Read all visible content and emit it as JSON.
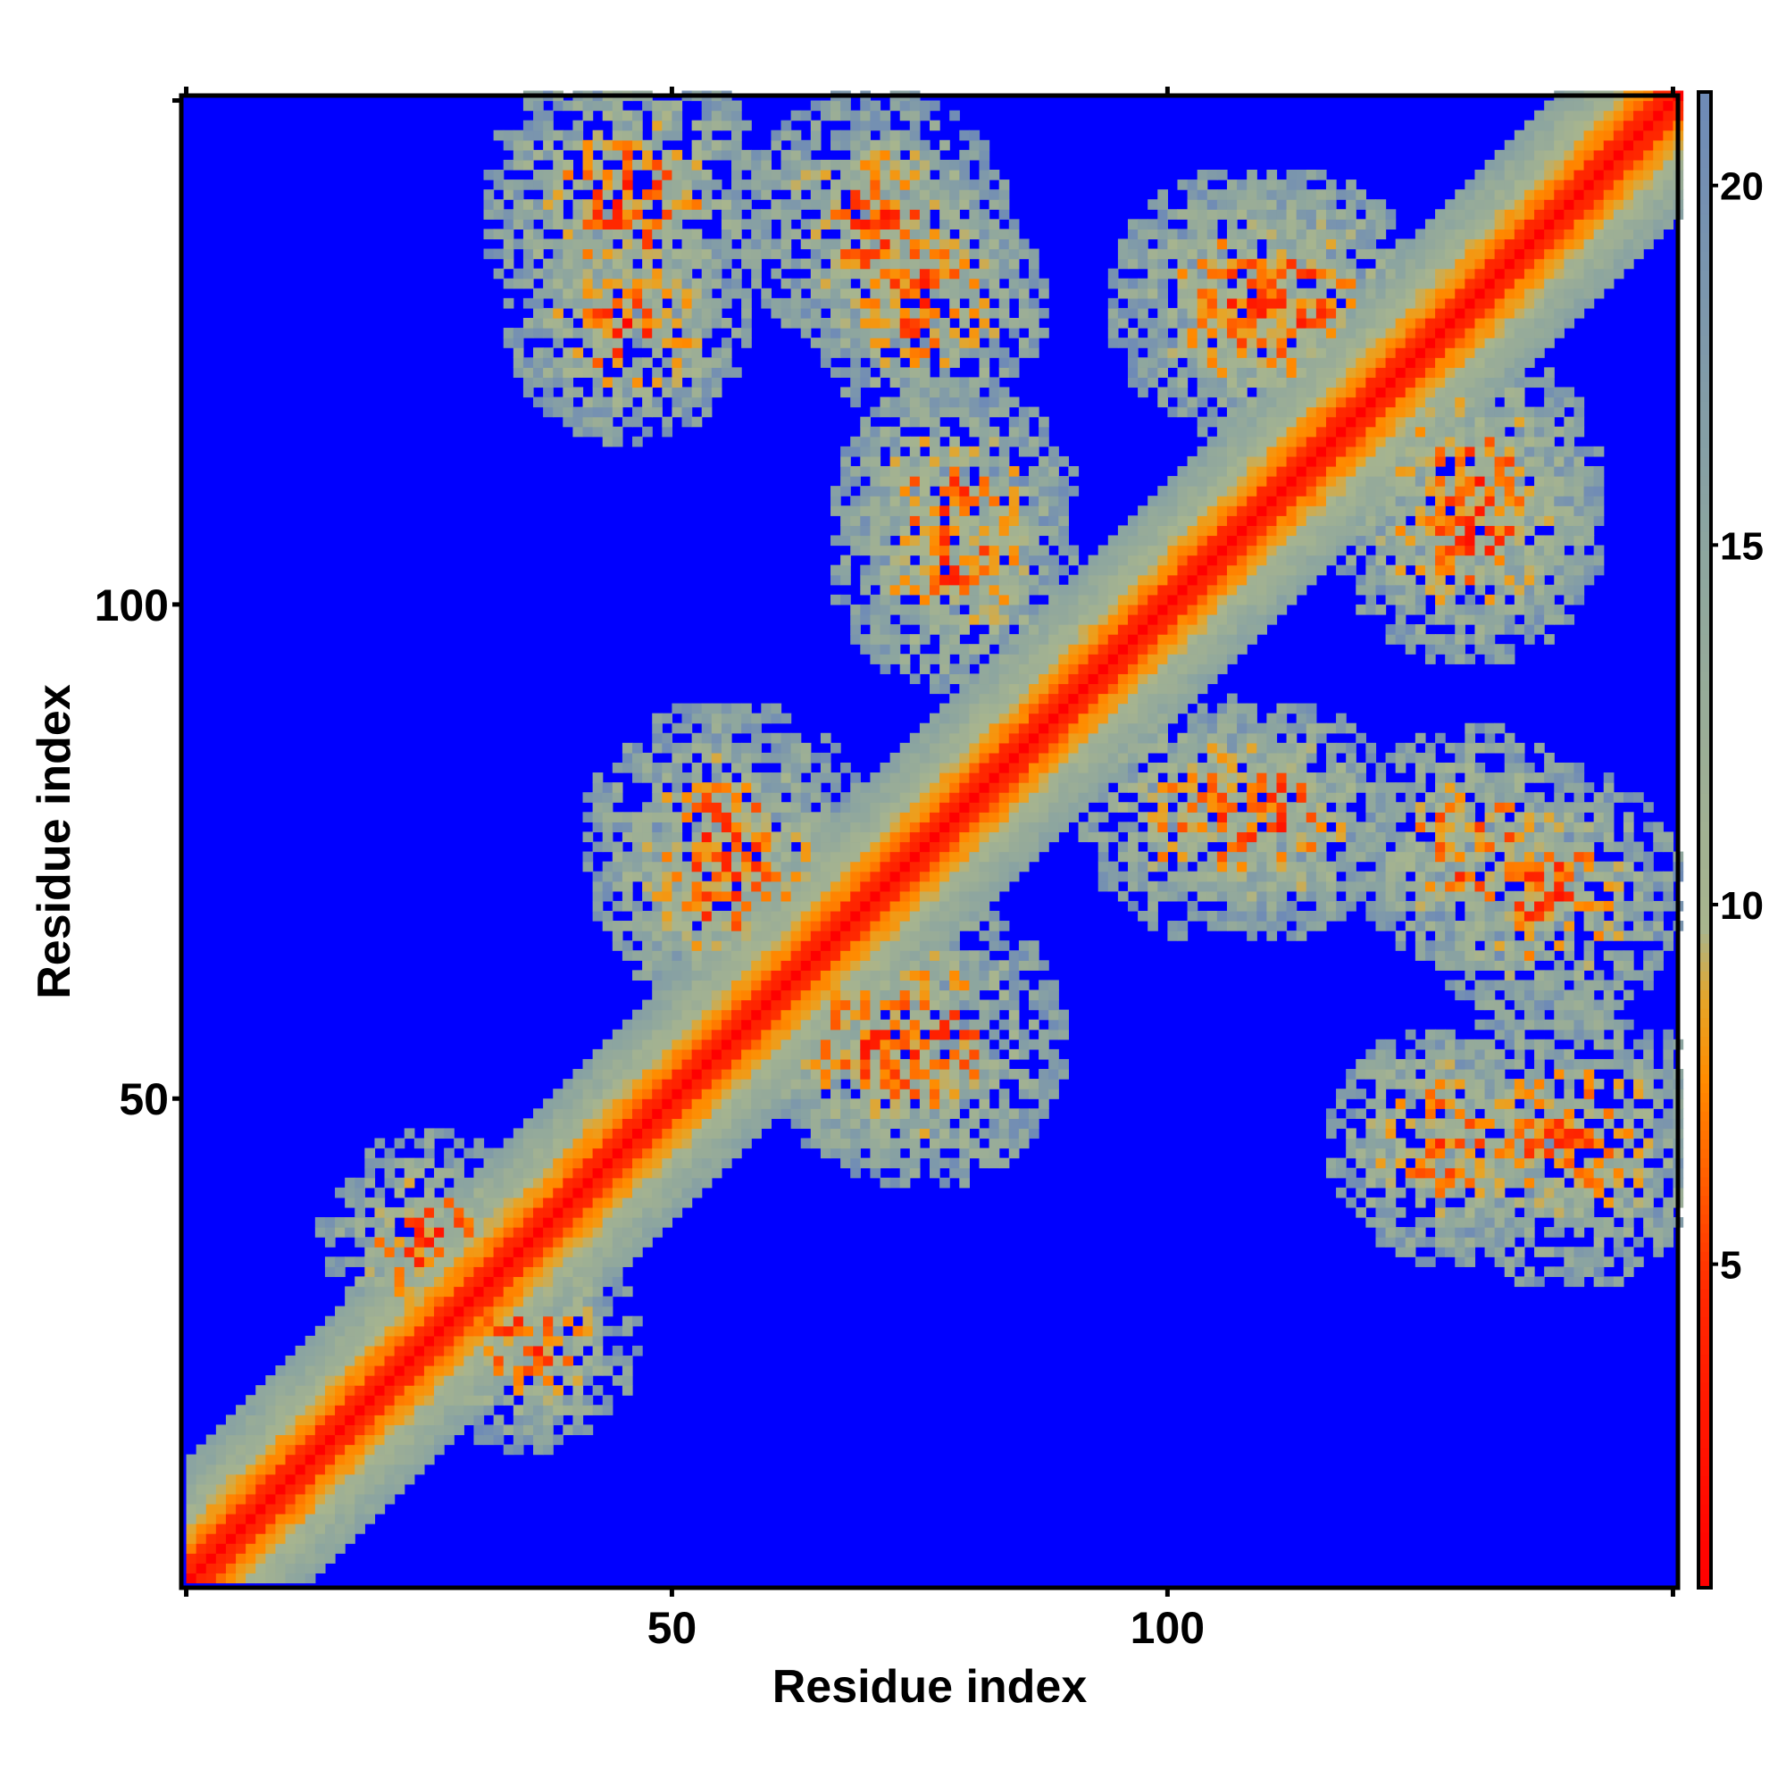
{
  "chart_data": {
    "type": "heatmap",
    "title": "",
    "xlabel": "Residue index",
    "ylabel": "Residue index",
    "n_residues": 151,
    "x_range": [
      1,
      151
    ],
    "y_range": [
      1,
      151
    ],
    "xticks": [
      50,
      100
    ],
    "yticks": [
      50,
      100
    ],
    "grid": false,
    "colorbar": {
      "position": "right",
      "range": [
        0.5,
        21.3
      ],
      "ticks": [
        5,
        10,
        15,
        20
      ],
      "cutoff": 21,
      "scale_note": "distance map; values above cutoff shown as background",
      "colors": {
        "low": "#ff0000",
        "mid_orange": "#ff8c00",
        "mid_tan": "#a8b58e",
        "high": "#6f8bb6",
        "background": "#0000ff"
      }
    },
    "structure": {
      "diagonal": "distances near 1-6 along residue i = j, widening band of 6-12 up to about |i-j| = 10",
      "contact_domains": [
        {
          "x_center": 45,
          "y_center": 140,
          "spread": 12
        },
        {
          "x_center": 75,
          "y_center": 130,
          "spread": 10
        },
        {
          "x_center": 112,
          "y_center": 130,
          "spread": 11
        },
        {
          "x_center": 78,
          "y_center": 103,
          "spread": 10
        },
        {
          "x_center": 130,
          "y_center": 107,
          "spread": 11
        },
        {
          "x_center": 55,
          "y_center": 75,
          "spread": 12
        },
        {
          "x_center": 110,
          "y_center": 78,
          "spread": 10
        },
        {
          "x_center": 138,
          "y_center": 70,
          "spread": 11
        },
        {
          "x_center": 70,
          "y_center": 55,
          "spread": 10
        },
        {
          "x_center": 128,
          "y_center": 45,
          "spread": 10
        },
        {
          "x_center": 25,
          "y_center": 35,
          "spread": 9
        }
      ]
    }
  }
}
